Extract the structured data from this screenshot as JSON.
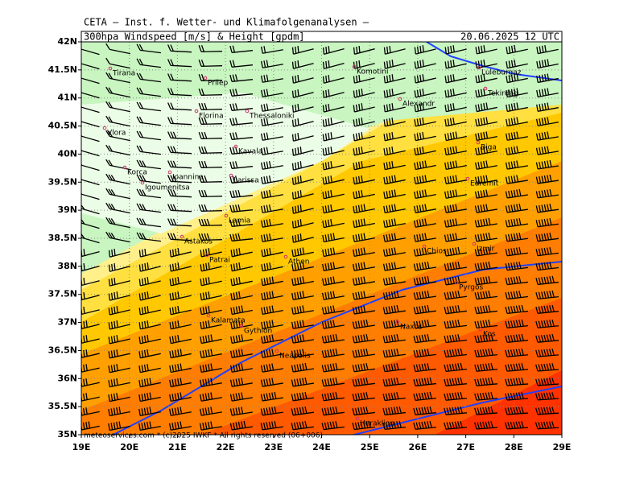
{
  "header": {
    "institute": "CETA – Inst. f. Wetter- und Klimafolgenanalysen –",
    "title": "300hpa Windspeed [m/s] & Height [gpdm]",
    "date": "20.06.2025 12 UTC"
  },
  "x_axis_labels": [
    "19E",
    "20E",
    "21E",
    "22E",
    "23E",
    "24E",
    "25E",
    "26E",
    "27E",
    "28E",
    "29E"
  ],
  "y_axis_labels": [
    "42N",
    "41.5N",
    "41N",
    "40.5N",
    "40N",
    "39.5N",
    "39N",
    "38.5N",
    "38N",
    "37.5N",
    "37N",
    "36.5N",
    "36N",
    "35.5N",
    "35N"
  ],
  "cities": [
    "Tirana",
    "Komotini",
    "Luleburgaz",
    "Tekirdag",
    "Prilep",
    "Florina",
    "Thessaloniki",
    "Alexandr",
    "Vlora",
    "Kavala",
    "Biga",
    "Korca",
    "Ioannina",
    "Igoumenitsa",
    "Larissa",
    "Edremit",
    "Lamia",
    "Astakos",
    "Patrai",
    "Athen",
    "Chios",
    "Izmir",
    "Pyrgos",
    "Kalamata",
    "Gythion",
    "Naxos",
    "Kos",
    "Neapolis",
    "Heraklion"
  ],
  "footer": "meteoservices.com * (c)2025 IWKF * All rights reserved (06+006)"
}
